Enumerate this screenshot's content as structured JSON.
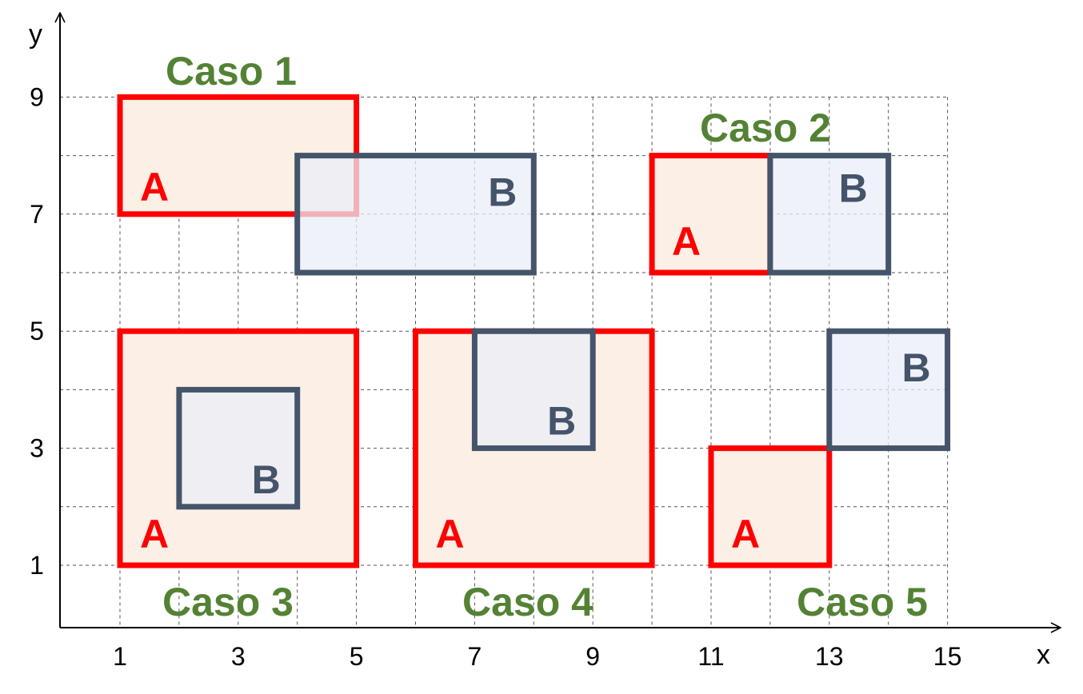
{
  "axes": {
    "x_label": "x",
    "y_label": "y",
    "x_ticks": [
      "1",
      "3",
      "5",
      "7",
      "9",
      "11",
      "13",
      "15"
    ],
    "y_ticks": [
      "1",
      "3",
      "5",
      "7",
      "9"
    ],
    "grid": true,
    "grid_x_range": [
      1,
      15
    ],
    "grid_y_range": [
      1,
      9
    ]
  },
  "colors": {
    "a_stroke": "#ff0000",
    "a_fill": "#fbefe6",
    "b_stroke": "#44546a",
    "b_fill": "#e9eef7",
    "case_text": "#548235"
  },
  "cases": [
    {
      "label": "Caso 1",
      "rect_a": {
        "letter": "A",
        "x1": 1,
        "x2": 5,
        "y1": 7,
        "y2": 9
      },
      "rect_b": {
        "letter": "B",
        "x1": 4,
        "x2": 8,
        "y1": 6,
        "y2": 8
      }
    },
    {
      "label": "Caso 2",
      "rect_a": {
        "letter": "A",
        "x1": 10,
        "x2": 12,
        "y1": 6,
        "y2": 8
      },
      "rect_b": {
        "letter": "B",
        "x1": 12,
        "x2": 14,
        "y1": 6,
        "y2": 8
      }
    },
    {
      "label": "Caso 3",
      "rect_a": {
        "letter": "A",
        "x1": 1,
        "x2": 5,
        "y1": 1,
        "y2": 5
      },
      "rect_b": {
        "letter": "B",
        "x1": 2,
        "x2": 4,
        "y1": 2,
        "y2": 4
      }
    },
    {
      "label": "Caso 4",
      "rect_a": {
        "letter": "A",
        "x1": 6,
        "x2": 10,
        "y1": 1,
        "y2": 5
      },
      "rect_b": {
        "letter": "B",
        "x1": 7,
        "x2": 9,
        "y1": 3,
        "y2": 5
      }
    },
    {
      "label": "Caso 5",
      "rect_a": {
        "letter": "A",
        "x1": 11,
        "x2": 13,
        "y1": 1,
        "y2": 3
      },
      "rect_b": {
        "letter": "B",
        "x1": 13,
        "x2": 15,
        "y1": 3,
        "y2": 5
      }
    }
  ]
}
